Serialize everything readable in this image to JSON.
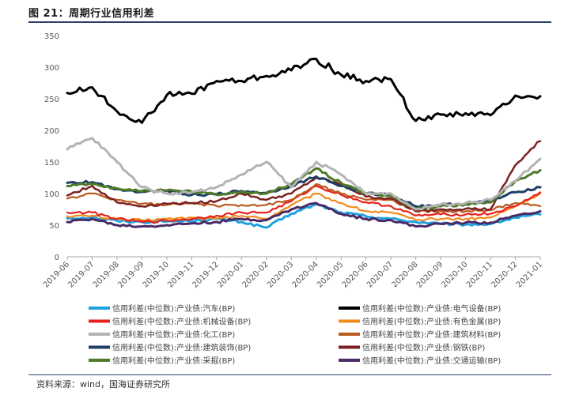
{
  "figure": {
    "title": "图 21：周期行业信用利差",
    "source": "资料来源：wind，国海证券研究所"
  },
  "chart_data": {
    "type": "line",
    "title": "",
    "xlabel": "",
    "ylabel": "",
    "ylim": [
      0,
      350
    ],
    "yticks": [
      0,
      50,
      100,
      150,
      200,
      250,
      300,
      350
    ],
    "x_ticks": [
      "2019-06",
      "2019-07",
      "2019-08",
      "2019-09",
      "2019-10",
      "2019-11",
      "2019-12",
      "2020-01",
      "2020-02",
      "2020-03",
      "2020-04",
      "2020-05",
      "2020-06",
      "2020-07",
      "2020-08",
      "2020-09",
      "2020-10",
      "2020-11",
      "2020-12",
      "2021-01"
    ],
    "grid": false,
    "legend_position": "bottom",
    "x": [
      "2019-06",
      "2019-07",
      "2019-08",
      "2019-09",
      "2019-10",
      "2019-11",
      "2019-12",
      "2020-01",
      "2020-02",
      "2020-03",
      "2020-04",
      "2020-05",
      "2020-06",
      "2020-07",
      "2020-08",
      "2020-09",
      "2020-10",
      "2020-11",
      "2020-12",
      "2021-01"
    ],
    "series": [
      {
        "name": "信用利差(中位数):产业债:汽车(BP)",
        "color": "#1fa2e0",
        "width": 3,
        "values": [
          61,
          62,
          57,
          55,
          56,
          57,
          60,
          55,
          46,
          68,
          83,
          70,
          64,
          60,
          55,
          52,
          51,
          52,
          62,
          67
        ]
      },
      {
        "name": "信用利差(中位数):产业债:电气设备(BP)",
        "color": "#000000",
        "width": 3,
        "values": [
          259,
          268,
          230,
          212,
          256,
          258,
          278,
          278,
          286,
          295,
          313,
          288,
          278,
          281,
          215,
          225,
          227,
          224,
          255,
          254
        ]
      },
      {
        "name": "信用利差(中位数):产业债:机械设备(BP)",
        "color": "#e8201b",
        "width": 2.2,
        "values": [
          70,
          70,
          60,
          55,
          57,
          60,
          65,
          70,
          70,
          88,
          112,
          98,
          86,
          80,
          65,
          67,
          67,
          68,
          80,
          102
        ]
      },
      {
        "name": "信用利差(中位数):产业债:有色金属(BP)",
        "color": "#f28a1c",
        "width": 2.2,
        "values": [
          64,
          65,
          59,
          58,
          60,
          62,
          60,
          65,
          60,
          82,
          100,
          85,
          72,
          70,
          58,
          60,
          60,
          62,
          80,
          100
        ]
      },
      {
        "name": "信用利差(中位数):产业债:化工(BP)",
        "color": "#b3b3b3",
        "width": 3,
        "values": [
          170,
          188,
          150,
          110,
          100,
          102,
          110,
          130,
          150,
          110,
          150,
          130,
          100,
          100,
          75,
          83,
          85,
          90,
          120,
          155
        ]
      },
      {
        "name": "信用利差(中位数):产业债:建筑材料(BP)",
        "color": "#b85a1e",
        "width": 2.2,
        "values": [
          92,
          100,
          90,
          84,
          82,
          85,
          80,
          82,
          82,
          90,
          115,
          100,
          90,
          90,
          72,
          72,
          72,
          74,
          85,
          80
        ]
      },
      {
        "name": "信用利差(中位数):产业债:建筑装饰(BP)",
        "color": "#1f3d66",
        "width": 3,
        "values": [
          117,
          118,
          107,
          103,
          105,
          98,
          99,
          104,
          101,
          112,
          127,
          112,
          100,
          98,
          80,
          82,
          83,
          88,
          102,
          110
        ]
      },
      {
        "name": "信用利差(中位数):产业债:钢铁(BP)",
        "color": "#7a2020",
        "width": 2.5,
        "values": [
          97,
          112,
          86,
          80,
          84,
          85,
          88,
          100,
          90,
          100,
          125,
          115,
          95,
          92,
          72,
          75,
          76,
          75,
          145,
          183
        ]
      },
      {
        "name": "信用利差(中位数):产业债:采掘(BP)",
        "color": "#4e7a2a",
        "width": 3,
        "values": [
          112,
          115,
          108,
          104,
          105,
          103,
          98,
          103,
          100,
          115,
          140,
          117,
          100,
          96,
          76,
          80,
          83,
          86,
          120,
          137
        ]
      },
      {
        "name": "信用利差(中位数):产业债:交通运输(BP)",
        "color": "#4a2a66",
        "width": 3,
        "values": [
          55,
          60,
          50,
          48,
          50,
          53,
          55,
          60,
          58,
          75,
          85,
          68,
          60,
          58,
          48,
          52,
          54,
          54,
          65,
          72
        ]
      }
    ]
  }
}
